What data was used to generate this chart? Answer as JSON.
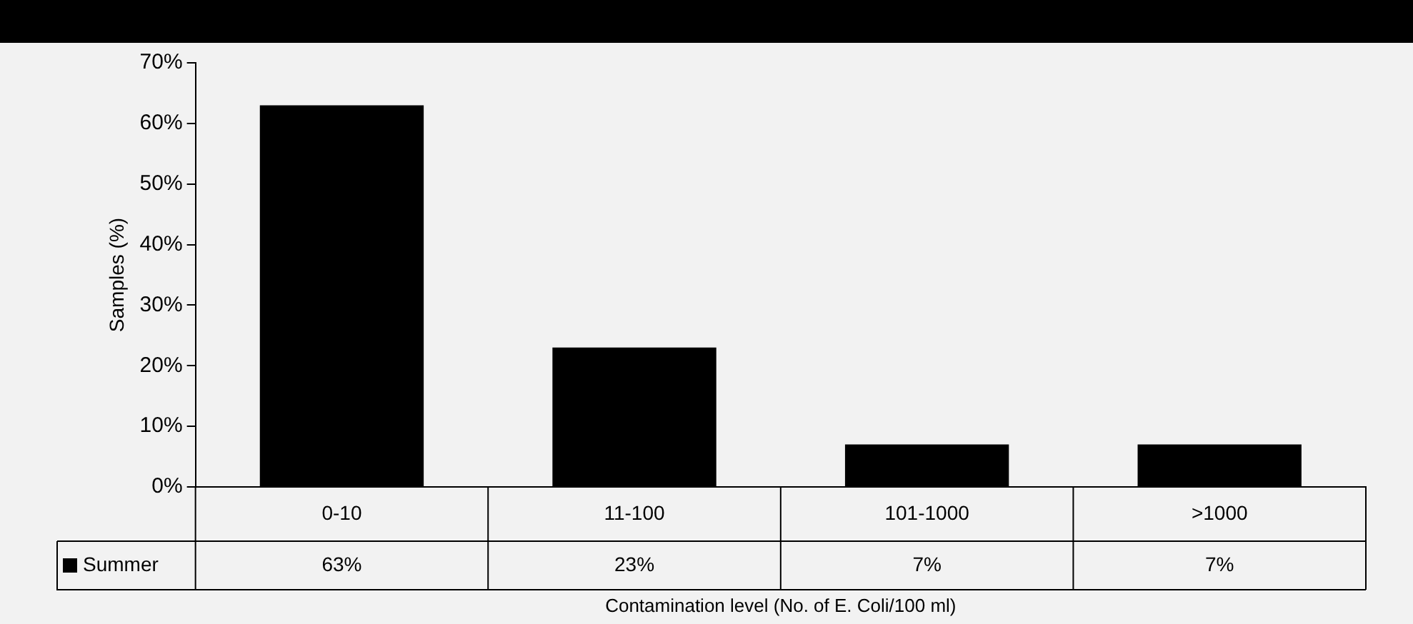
{
  "chart_data": {
    "type": "bar",
    "ylabel": "Samples (%)",
    "xlabel": "Contamination level (No. of E. Coli/100 ml)",
    "categories": [
      "0-10",
      "11-100",
      "101-1000",
      ">1000"
    ],
    "series": [
      {
        "name": "Summer",
        "color": "#000000",
        "values": [
          63,
          23,
          7,
          7
        ],
        "value_labels": [
          "63%",
          "23%",
          "7%",
          "7%"
        ]
      }
    ],
    "ylim": [
      0,
      70
    ],
    "yticks": [
      {
        "value": 0,
        "label": "0%"
      },
      {
        "value": 10,
        "label": "10%"
      },
      {
        "value": 20,
        "label": "20%"
      },
      {
        "value": 30,
        "label": "30%"
      },
      {
        "value": 40,
        "label": "40%"
      },
      {
        "value": 50,
        "label": "50%"
      },
      {
        "value": 60,
        "label": "60%"
      },
      {
        "value": 70,
        "label": "70%"
      }
    ],
    "grid": false,
    "legend": "bottom"
  }
}
